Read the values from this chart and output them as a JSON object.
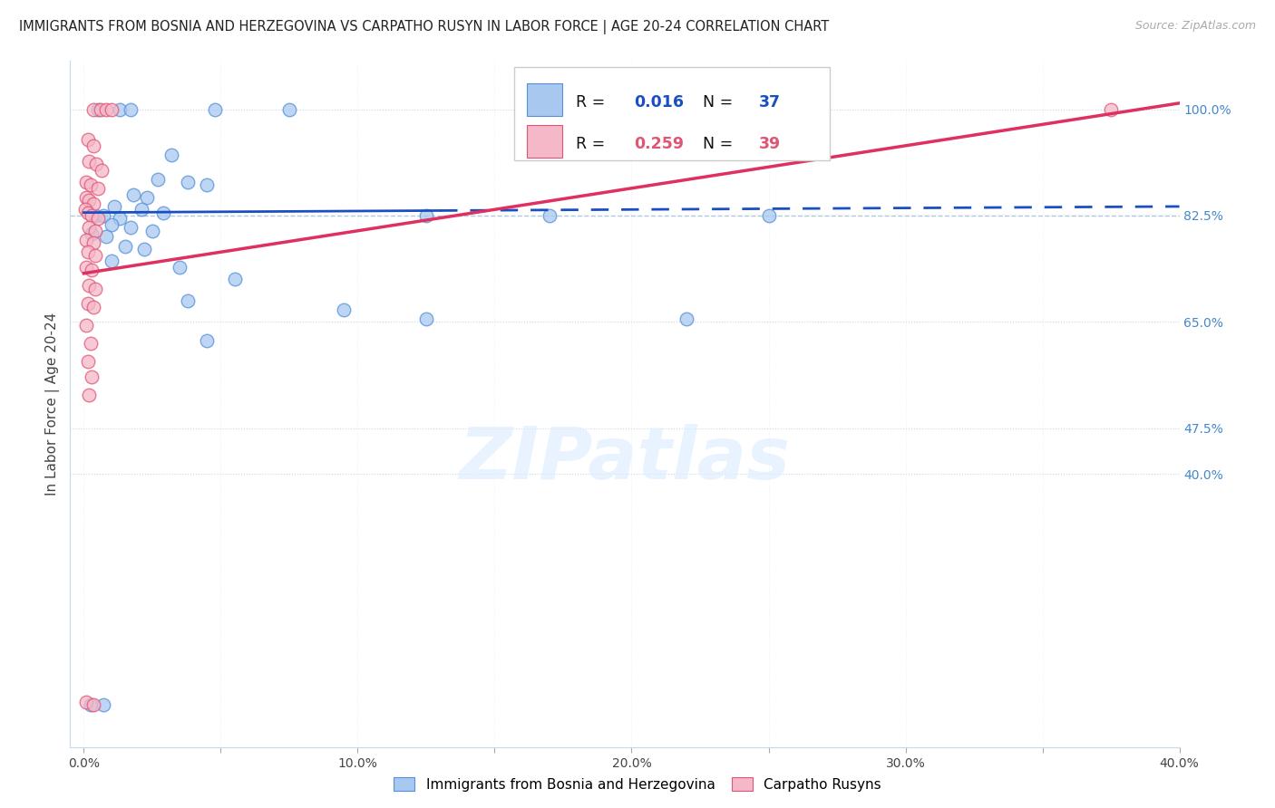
{
  "title": "IMMIGRANTS FROM BOSNIA AND HERZEGOVINA VS CARPATHO RUSYN IN LABOR FORCE | AGE 20-24 CORRELATION CHART",
  "source": "Source: ZipAtlas.com",
  "ylabel": "In Labor Force | Age 20-24",
  "x_tick_vals": [
    0,
    5,
    10,
    15,
    20,
    25,
    30,
    35,
    40
  ],
  "x_tick_labels": [
    "0.0%",
    "",
    "10.0%",
    "",
    "20.0%",
    "",
    "30.0%",
    "",
    "40.0%"
  ],
  "y_tick_vals": [
    40.0,
    47.5,
    65.0,
    82.5,
    100.0
  ],
  "y_tick_labels": [
    "40.0%",
    "47.5%",
    "65.0%",
    "82.5%",
    "100.0%"
  ],
  "xlim": [
    -0.5,
    40
  ],
  "ylim": [
    -5,
    108
  ],
  "blue_R": "0.016",
  "blue_N": "37",
  "pink_R": "0.259",
  "pink_N": "39",
  "legend_label_blue": "Immigrants from Bosnia and Herzegovina",
  "legend_label_pink": "Carpatho Rusyns",
  "blue_color": "#a8c8f0",
  "pink_color": "#f5b8c8",
  "blue_edge_color": "#5590d8",
  "pink_edge_color": "#e05575",
  "blue_line_color": "#1a4fc4",
  "pink_line_color": "#e03060",
  "blue_dots": [
    [
      0.5,
      100.0
    ],
    [
      1.3,
      100.0
    ],
    [
      1.7,
      100.0
    ],
    [
      4.8,
      100.0
    ],
    [
      7.5,
      100.0
    ],
    [
      3.2,
      92.5
    ],
    [
      2.7,
      88.5
    ],
    [
      3.8,
      88.0
    ],
    [
      4.5,
      87.5
    ],
    [
      1.8,
      86.0
    ],
    [
      2.3,
      85.5
    ],
    [
      1.1,
      84.0
    ],
    [
      2.1,
      83.5
    ],
    [
      2.9,
      83.0
    ],
    [
      0.4,
      82.5
    ],
    [
      0.7,
      82.5
    ],
    [
      1.3,
      82.0
    ],
    [
      1.0,
      81.0
    ],
    [
      1.7,
      80.5
    ],
    [
      2.5,
      80.0
    ],
    [
      0.3,
      79.5
    ],
    [
      0.8,
      79.0
    ],
    [
      1.5,
      77.5
    ],
    [
      2.2,
      77.0
    ],
    [
      1.0,
      75.0
    ],
    [
      3.5,
      74.0
    ],
    [
      5.5,
      72.0
    ],
    [
      3.8,
      68.5
    ],
    [
      9.5,
      67.0
    ],
    [
      12.5,
      65.5
    ],
    [
      4.5,
      62.0
    ],
    [
      22.0,
      65.5
    ],
    [
      0.25,
      2.0
    ],
    [
      0.7,
      2.0
    ],
    [
      17.0,
      82.5
    ],
    [
      12.5,
      82.5
    ],
    [
      25.0,
      82.5
    ]
  ],
  "pink_dots": [
    [
      0.35,
      100.0
    ],
    [
      0.6,
      100.0
    ],
    [
      0.8,
      100.0
    ],
    [
      1.0,
      100.0
    ],
    [
      0.15,
      95.0
    ],
    [
      0.35,
      94.0
    ],
    [
      0.2,
      91.5
    ],
    [
      0.45,
      91.0
    ],
    [
      0.65,
      90.0
    ],
    [
      0.1,
      88.0
    ],
    [
      0.25,
      87.5
    ],
    [
      0.5,
      87.0
    ],
    [
      0.1,
      85.5
    ],
    [
      0.2,
      85.0
    ],
    [
      0.35,
      84.5
    ],
    [
      0.05,
      83.5
    ],
    [
      0.15,
      83.0
    ],
    [
      0.3,
      82.5
    ],
    [
      0.5,
      82.0
    ],
    [
      0.2,
      80.5
    ],
    [
      0.4,
      80.0
    ],
    [
      0.1,
      78.5
    ],
    [
      0.35,
      78.0
    ],
    [
      0.15,
      76.5
    ],
    [
      0.4,
      76.0
    ],
    [
      0.1,
      74.0
    ],
    [
      0.3,
      73.5
    ],
    [
      0.2,
      71.0
    ],
    [
      0.4,
      70.5
    ],
    [
      0.15,
      68.0
    ],
    [
      0.35,
      67.5
    ],
    [
      0.1,
      64.5
    ],
    [
      0.25,
      61.5
    ],
    [
      0.15,
      58.5
    ],
    [
      0.3,
      56.0
    ],
    [
      0.2,
      53.0
    ],
    [
      0.1,
      2.5
    ],
    [
      0.35,
      2.0
    ],
    [
      37.5,
      100.0
    ]
  ],
  "blue_trend_x": [
    0,
    40
  ],
  "blue_trend_y": [
    83.0,
    84.0
  ],
  "blue_solid_end": 13,
  "pink_trend_x": [
    0,
    40
  ],
  "pink_trend_y": [
    73.0,
    101.0
  ],
  "watermark_text": "ZIPatlas",
  "grid_color": "#c8daea",
  "grid_dash_color": "#b0c8e0",
  "background_color": "#ffffff",
  "title_fontsize": 10.5,
  "tick_fontsize": 10,
  "axis_label_fontsize": 11,
  "right_tick_color": "#4488cc"
}
